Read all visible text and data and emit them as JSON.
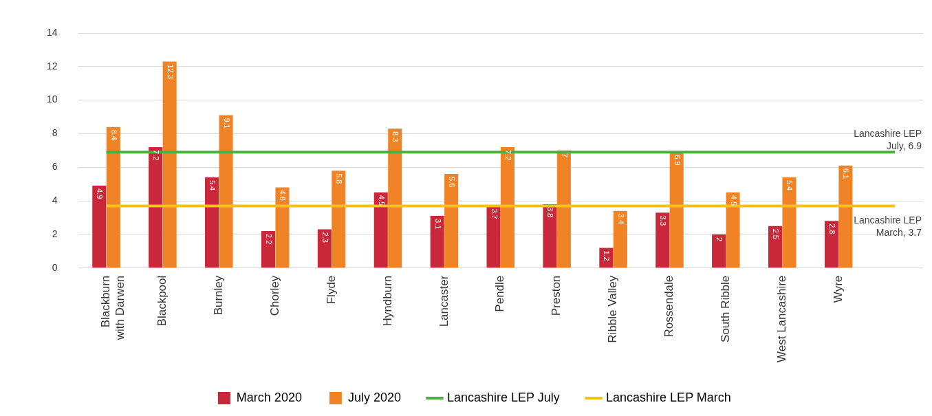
{
  "chart_data": {
    "type": "bar",
    "categories": [
      "Blackburn with Darwen",
      "Blackpool",
      "Burnley",
      "Chorley",
      "Flyde",
      "Hyndburn",
      "Lancaster",
      "Pendle",
      "Preston",
      "Ribble Valley",
      "Rossendale",
      "South Ribble",
      "West Lancashire",
      "Wyre",
      null
    ],
    "series": [
      {
        "name": "March 2020",
        "color": "#c8283a",
        "values": [
          4.9,
          7.2,
          5.4,
          2.2,
          2.3,
          4.5,
          3.1,
          3.7,
          3.8,
          1.2,
          3.3,
          2,
          2.5,
          2.8,
          null
        ],
        "value_labels": [
          "4.9",
          "7.2",
          "5.4",
          "2.2",
          "2.3",
          "4.5",
          "3.1",
          "3.7",
          "3.8",
          "1.2",
          "3.3",
          "2",
          "2.5",
          "2.8",
          null
        ]
      },
      {
        "name": "July 2020",
        "color": "#f08326",
        "values": [
          8.4,
          12.3,
          9.1,
          4.8,
          5.8,
          8.3,
          5.6,
          7.2,
          7,
          3.4,
          6.9,
          4.5,
          5.4,
          6.1,
          null
        ],
        "value_labels": [
          "8.4",
          "12.3",
          "9.1",
          "4.8",
          "5.8",
          "8.3",
          "5.6",
          "7.2",
          "7",
          "3.4",
          "6.9",
          "4.5",
          "5.4",
          "6.1",
          null
        ]
      },
      {
        "name": "Lancashire LEP July",
        "type": "line",
        "color": "#4cae3f",
        "values": [
          6.9,
          6.9,
          6.9,
          6.9,
          6.9,
          6.9,
          6.9,
          6.9,
          6.9,
          6.9,
          6.9,
          6.9,
          6.9,
          6.9,
          6.9
        ]
      },
      {
        "name": "Lancashire LEP March",
        "type": "line",
        "color": "#f7c01f",
        "values": [
          3.7,
          3.7,
          3.7,
          3.7,
          3.7,
          3.7,
          3.7,
          3.7,
          3.7,
          3.7,
          3.7,
          3.7,
          3.7,
          3.7,
          3.7
        ]
      }
    ],
    "annotations": [
      {
        "text": "Lancashire LEP July, 6.9",
        "y": 6.9
      },
      {
        "text": "Lancashire LEP March, 3.7",
        "y": 3.7
      }
    ],
    "ylim": [
      0,
      14
    ],
    "yticks": [
      0,
      2,
      4,
      6,
      8,
      10,
      12,
      14
    ],
    "grid": "y",
    "legend": "bottom",
    "marker": "none"
  }
}
